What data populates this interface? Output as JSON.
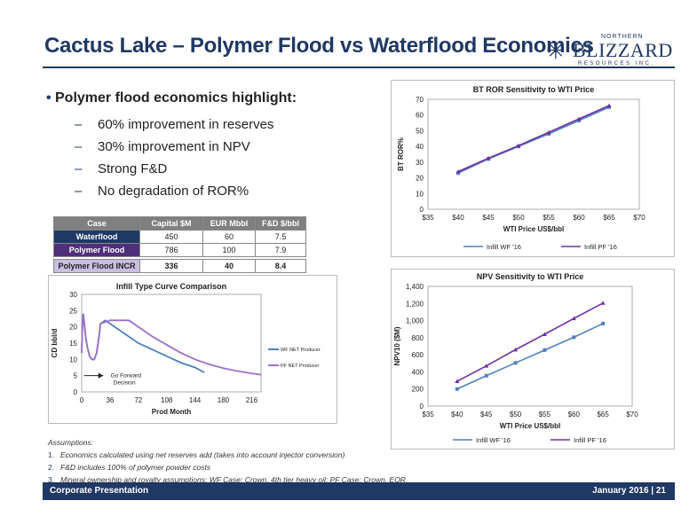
{
  "slide": {
    "title": "Cactus Lake – Polymer Flood vs Waterflood Economics",
    "logo_top": "NORTHERN",
    "logo_main": "BLIZZARD",
    "logo_bottom": "RESOURCES INC.",
    "footer_left": "Corporate Presentation",
    "footer_right": "January 2016 | 21"
  },
  "bullets": {
    "main": "Polymer flood economics highlight:",
    "subs": [
      "60% improvement in reserves",
      "30% improvement in NPV",
      "Strong F&D",
      "No degradation of ROR%"
    ]
  },
  "table": {
    "headers": [
      "Case",
      "Capital $M",
      "EUR Mbbl",
      "F&D $/bbl"
    ],
    "rows": [
      [
        "Waterflood",
        "450",
        "60",
        "7.5"
      ],
      [
        "Polymer Flood",
        "786",
        "100",
        "7.9"
      ]
    ],
    "incr": [
      "Polymer Flood INCR",
      "336",
      "40",
      "8.4"
    ]
  },
  "assumptions": {
    "heading": "Assumptions:",
    "items": [
      "Economics calculated using net reserves add (takes into account injector conversion)",
      "F&D includes 100% of polymer powder costs",
      "Mineral ownership and royalty assumptions: WF Case: Crown, 4th tier heavy oil; PF Case: Crown, EOR"
    ]
  },
  "chart_data": [
    {
      "type": "line",
      "title": "BT ROR Sensitivity to WTI Price",
      "xlabel": "WTI Price US$/bbl",
      "ylabel": "BT ROR%",
      "xlim": [
        35,
        70
      ],
      "ylim": [
        0,
        70
      ],
      "xticks": [
        "$35",
        "$40",
        "$45",
        "$50",
        "$55",
        "$60",
        "$65",
        "$70"
      ],
      "yticks": [
        "0",
        "10",
        "20",
        "30",
        "40",
        "50",
        "60",
        "70"
      ],
      "x": [
        40,
        45,
        50,
        55,
        60,
        65
      ],
      "series": [
        {
          "name": "Infill WF '16",
          "color": "#4f81bd",
          "values": [
            23,
            32,
            40,
            48,
            56.5,
            65
          ]
        },
        {
          "name": "Infill PF '16",
          "color": "#7030a0",
          "values": [
            24,
            32.5,
            40.5,
            49,
            57.5,
            66
          ]
        }
      ],
      "legend": "bottom"
    },
    {
      "type": "line",
      "title": "NPV Sensitivity to WTI Price",
      "xlabel": "WTI Price US$/bbl",
      "ylabel": "NPV10 ($M)",
      "xlim": [
        35,
        70
      ],
      "ylim": [
        0,
        1400
      ],
      "xticks": [
        "$35",
        "$40",
        "$45",
        "$50",
        "$55",
        "$60",
        "$65",
        "$70"
      ],
      "yticks": [
        "0",
        "200",
        "400",
        "600",
        "800",
        "1,000",
        "1,200",
        "1,400"
      ],
      "x": [
        40,
        45,
        50,
        55,
        60,
        65
      ],
      "series": [
        {
          "name": "Infill WF '16",
          "color": "#4f81bd",
          "values": [
            200,
            355,
            505,
            655,
            805,
            965
          ]
        },
        {
          "name": "Infill PF '16",
          "color": "#7030a0",
          "values": [
            290,
            470,
            660,
            840,
            1025,
            1205
          ]
        }
      ],
      "legend": "bottom"
    },
    {
      "type": "line",
      "title": "Infill Type Curve Comparison",
      "xlabel": "Prod Month",
      "ylabel": "CD bbl/d",
      "xlim": [
        0,
        228
      ],
      "ylim": [
        0,
        30
      ],
      "xticks": [
        "0",
        "36",
        "72",
        "108",
        "144",
        "180",
        "216"
      ],
      "yticks": [
        "0",
        "5",
        "10",
        "15",
        "20",
        "25",
        "30"
      ],
      "annotation": [
        "Go Forward",
        "Decision"
      ],
      "series": [
        {
          "name": "WF NET Producer",
          "color": "#4f81bd",
          "x": [
            0,
            1,
            2,
            3,
            5,
            7,
            10,
            13,
            16,
            19,
            22,
            24,
            30,
            36,
            48,
            60,
            72,
            90,
            108,
            126,
            144,
            156
          ],
          "y": [
            12,
            21,
            24,
            22,
            17,
            14,
            11,
            10,
            10,
            12,
            17,
            21,
            22,
            21,
            19,
            17,
            15,
            13,
            11,
            9,
            7.5,
            6
          ]
        },
        {
          "name": "PF NET Producer",
          "color": "#9b6fc9",
          "x": [
            0,
            1,
            2,
            3,
            5,
            7,
            10,
            13,
            16,
            19,
            22,
            24,
            36,
            48,
            60,
            72,
            90,
            108,
            126,
            144,
            162,
            180,
            198,
            216,
            228
          ],
          "y": [
            12,
            21,
            24,
            22,
            17,
            14,
            11,
            10,
            10,
            12,
            17,
            21,
            22,
            22,
            22,
            20,
            17,
            14.5,
            12,
            10,
            8.5,
            7.3,
            6.4,
            5.7,
            5.3
          ]
        }
      ],
      "legend": "right"
    }
  ]
}
